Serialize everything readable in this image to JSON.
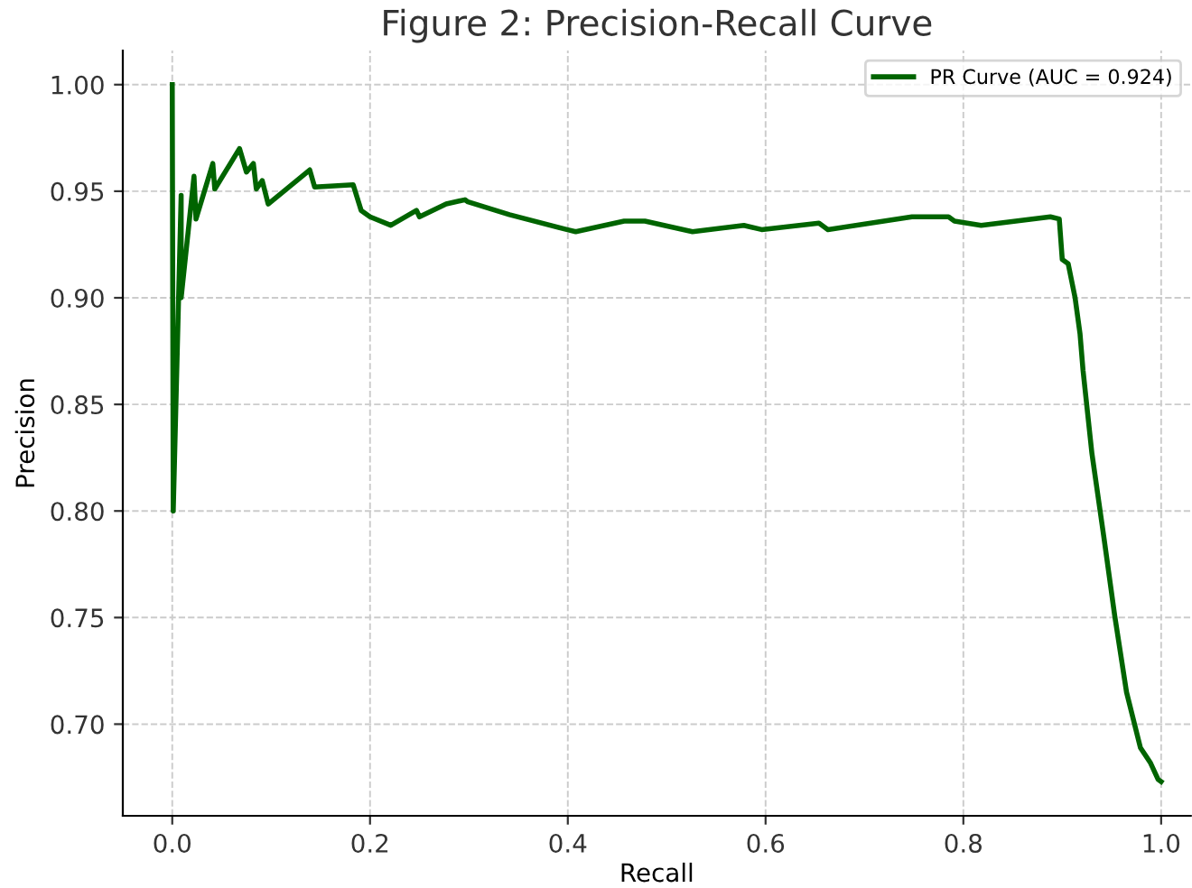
{
  "chart_data": {
    "type": "line",
    "title": "Figure 2: Precision-Recall Curve",
    "xlabel": "Recall",
    "ylabel": "Precision",
    "xlim": [
      -0.05,
      1.03
    ],
    "ylim": [
      0.657,
      1.016
    ],
    "xticks": [
      {
        "value": 0,
        "label": "0.0"
      },
      0.2,
      0.4,
      0.6,
      0.8,
      {
        "value": 1,
        "label": "1.0"
      }
    ],
    "yticks": [
      {
        "value": 0.7,
        "label": "0.70"
      },
      0.75,
      {
        "value": 0.8,
        "label": "0.80"
      },
      0.85,
      {
        "value": 0.9,
        "label": "0.90"
      },
      0.95,
      {
        "value": 1,
        "label": "1.00"
      }
    ],
    "grid": true,
    "legend": "top right",
    "marker": "none",
    "line_style": "solid",
    "series": [
      {
        "name": "PR Curve (AUC = 0.924)",
        "color": "#006400",
        "x": [
          0.0,
          0.001,
          0.009,
          0.009,
          0.022,
          0.024,
          0.041,
          0.043,
          0.068,
          0.075,
          0.082,
          0.085,
          0.091,
          0.097,
          0.139,
          0.144,
          0.183,
          0.191,
          0.2,
          0.221,
          0.247,
          0.25,
          0.277,
          0.296,
          0.299,
          0.341,
          0.399,
          0.408,
          0.457,
          0.478,
          0.526,
          0.578,
          0.596,
          0.654,
          0.663,
          0.748,
          0.785,
          0.791,
          0.818,
          0.888,
          0.897,
          0.9,
          0.906,
          0.913,
          0.918,
          0.921,
          0.93,
          0.942,
          0.953,
          0.965,
          0.979,
          0.989,
          0.997,
          1.0
        ],
        "values": [
          1.0,
          0.8,
          0.948,
          0.9,
          0.957,
          0.937,
          0.963,
          0.951,
          0.97,
          0.959,
          0.963,
          0.951,
          0.955,
          0.944,
          0.96,
          0.952,
          0.953,
          0.941,
          0.938,
          0.934,
          0.941,
          0.938,
          0.944,
          0.946,
          0.945,
          0.939,
          0.932,
          0.931,
          0.936,
          0.936,
          0.931,
          0.934,
          0.932,
          0.935,
          0.932,
          0.938,
          0.938,
          0.936,
          0.934,
          0.938,
          0.937,
          0.918,
          0.916,
          0.9,
          0.883,
          0.866,
          0.827,
          0.788,
          0.751,
          0.715,
          0.689,
          0.682,
          0.674,
          0.673
        ]
      }
    ]
  }
}
